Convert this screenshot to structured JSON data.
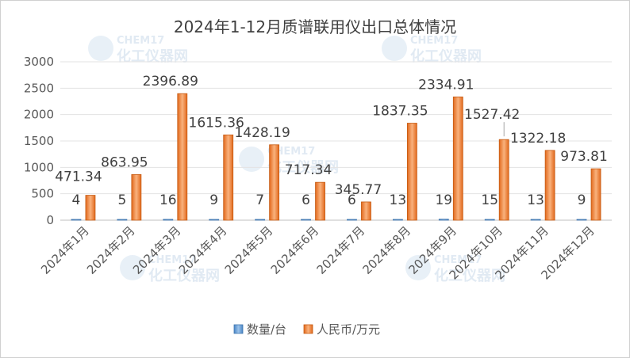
{
  "chart_data": {
    "type": "bar",
    "title": "2024年1-12月质谱联用仪出口总体情况",
    "categories": [
      "2024年1月",
      "2024年2月",
      "2024年3月",
      "2024年4月",
      "2024年5月",
      "2024年6月",
      "2024年7月",
      "2024年8月",
      "2024年9月",
      "2024年10月",
      "2024年11月",
      "2024年12月"
    ],
    "series": [
      {
        "name": "数量/台",
        "values": [
          4,
          5,
          16,
          9,
          7,
          6,
          6,
          13,
          19,
          15,
          13,
          9
        ],
        "color": "#5b9bd5"
      },
      {
        "name": "人民币/万元",
        "values": [
          471.34,
          863.95,
          2396.89,
          1615.36,
          1428.19,
          717.34,
          345.77,
          1837.35,
          2334.91,
          1527.42,
          1322.18,
          973.81
        ],
        "color": "#ed7d31"
      }
    ],
    "ylim": [
      0,
      3000
    ],
    "yticks": [
      0,
      500,
      1000,
      1500,
      2000,
      2500,
      3000
    ],
    "grid": true,
    "legend": "bottom"
  },
  "watermark": {
    "brand": "CHEM17",
    "tagline": "化工仪器网"
  }
}
